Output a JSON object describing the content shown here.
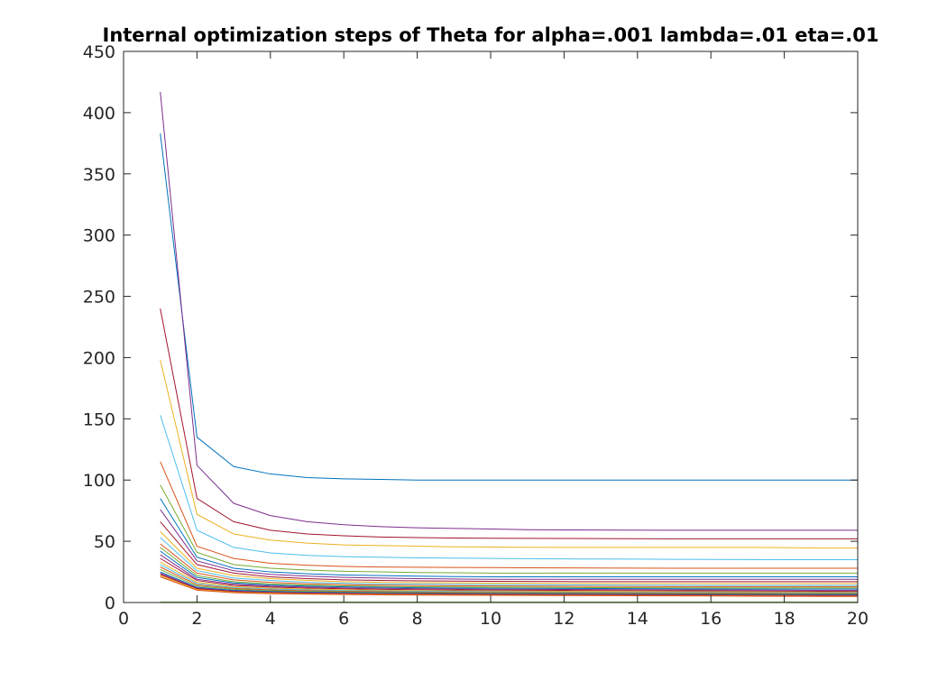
{
  "chart_data": {
    "type": "line",
    "title": "Internal optimization steps of Theta for alpha=.001 lambda=.01 eta=.01",
    "xlabel": "",
    "ylabel": "",
    "xlim": [
      0,
      20
    ],
    "ylim": [
      0,
      450
    ],
    "xticks": [
      0,
      2,
      4,
      6,
      8,
      10,
      12,
      14,
      16,
      18,
      20
    ],
    "yticks": [
      0,
      50,
      100,
      150,
      200,
      250,
      300,
      350,
      400,
      450
    ],
    "grid": false,
    "legend": "none",
    "x": [
      1,
      2,
      3,
      4,
      5,
      6,
      7,
      8,
      9,
      10,
      11,
      12,
      13,
      14,
      15,
      16,
      17,
      18,
      19,
      20
    ],
    "series": [
      {
        "color": "#0072BD",
        "values": [
          383,
          135,
          111,
          105,
          102,
          101,
          100.5,
          100,
          100,
          100,
          100,
          100,
          100,
          100,
          100,
          100,
          100,
          100,
          100,
          100
        ]
      },
      {
        "color": "#7E2F8E",
        "values": [
          417,
          112,
          81,
          71,
          66,
          63.5,
          62,
          61,
          60.5,
          60,
          59.5,
          59.3,
          59.2,
          59.1,
          59,
          59,
          59,
          59,
          59,
          59
        ]
      },
      {
        "color": "#A2142F",
        "values": [
          240,
          85,
          66,
          59,
          56,
          54.5,
          53.5,
          53,
          52.7,
          52.5,
          52.4,
          52.3,
          52.2,
          52.1,
          52,
          52,
          52,
          52,
          52,
          52
        ]
      },
      {
        "color": "#EDB120",
        "values": [
          198,
          72,
          56,
          51,
          48.5,
          47,
          46.5,
          46,
          45.5,
          45.3,
          45.1,
          45,
          45,
          45,
          45,
          45,
          45,
          44.8,
          44.5,
          44.5
        ]
      },
      {
        "color": "#4DBEEE",
        "values": [
          153,
          59,
          45,
          40.5,
          38.5,
          37.5,
          37,
          36.5,
          36.3,
          36,
          35.8,
          35.6,
          35.5,
          35.4,
          35.3,
          35.2,
          35.1,
          35,
          35,
          35
        ]
      },
      {
        "color": "#D95319",
        "values": [
          115,
          46,
          36,
          32,
          30.5,
          29.5,
          29,
          28.8,
          28.6,
          28.5,
          28.4,
          28.3,
          28.2,
          28.1,
          28,
          28,
          28,
          28,
          28,
          28
        ]
      },
      {
        "color": "#77AC30",
        "values": [
          96,
          41,
          31,
          28,
          26.5,
          25.5,
          25,
          24.5,
          24.3,
          24,
          24,
          24,
          24,
          24,
          24,
          24,
          24,
          24,
          24,
          24
        ]
      },
      {
        "color": "#0072BD",
        "values": [
          85,
          37,
          28,
          25,
          23.5,
          22.5,
          22,
          21.5,
          21.2,
          21,
          21,
          21,
          21,
          21,
          21,
          21,
          21,
          21,
          21,
          21
        ]
      },
      {
        "color": "#7E2F8E",
        "values": [
          76,
          34,
          26,
          23,
          21.5,
          20.5,
          20,
          19.5,
          19.2,
          19,
          19,
          19,
          19,
          19,
          19,
          19,
          19,
          19,
          19,
          19
        ]
      },
      {
        "color": "#A2142F",
        "values": [
          66,
          31,
          24,
          21,
          19.5,
          18.5,
          18,
          17.7,
          17.5,
          17.3,
          17.2,
          17.1,
          17,
          17,
          17,
          17,
          17,
          17,
          17,
          17
        ]
      },
      {
        "color": "#EDB120",
        "values": [
          58,
          28,
          22,
          19.5,
          18,
          17,
          16.5,
          16.2,
          16,
          15.8,
          15.7,
          15.6,
          15.5,
          15.5,
          15.5,
          15.5,
          15.5,
          15.5,
          15.5,
          15.5
        ]
      },
      {
        "color": "#4DBEEE",
        "values": [
          53,
          26,
          20,
          18,
          16.5,
          15.7,
          15.2,
          15,
          14.8,
          14.6,
          14.5,
          14.4,
          14.3,
          14.2,
          14.1,
          14,
          14,
          14,
          14,
          14
        ]
      },
      {
        "color": "#D95319",
        "values": [
          48,
          24,
          18.5,
          16.5,
          15.3,
          14.6,
          14.2,
          13.9,
          13.7,
          13.5,
          13.4,
          13.3,
          13.2,
          13.1,
          13,
          13,
          13,
          13,
          13,
          13
        ]
      },
      {
        "color": "#77AC30",
        "values": [
          45,
          22,
          17,
          15.2,
          14.2,
          13.6,
          13.2,
          12.9,
          12.7,
          12.5,
          12.4,
          12.3,
          12.2,
          12.1,
          12,
          12,
          12,
          12,
          12,
          12
        ]
      },
      {
        "color": "#0072BD",
        "values": [
          42,
          20.5,
          16,
          14.3,
          13.4,
          12.8,
          12.4,
          12.1,
          11.9,
          11.7,
          11.6,
          11.5,
          11.4,
          11.3,
          11.2,
          11.1,
          11,
          11,
          11,
          11
        ]
      },
      {
        "color": "#7E2F8E",
        "values": [
          39,
          19,
          15,
          13.4,
          12.6,
          12,
          11.6,
          11.3,
          11.1,
          10.9,
          10.8,
          10.7,
          10.6,
          10.5,
          10.4,
          10.3,
          10.2,
          10.1,
          10,
          10
        ]
      },
      {
        "color": "#A2142F",
        "values": [
          36,
          18,
          14,
          12.6,
          11.8,
          11.2,
          10.8,
          10.5,
          10.3,
          10.1,
          10,
          9.9,
          9.8,
          9.7,
          9.6,
          9.5,
          9.4,
          9.3,
          9.2,
          9.1
        ]
      },
      {
        "color": "#EDB120",
        "values": [
          33,
          16.5,
          13,
          11.7,
          11,
          10.5,
          10.1,
          9.8,
          9.6,
          9.4,
          9.3,
          9.2,
          9.1,
          9,
          8.9,
          8.8,
          8.7,
          8.6,
          8.5,
          8.5
        ]
      },
      {
        "color": "#4DBEEE",
        "values": [
          31,
          15.5,
          12.2,
          11,
          10.3,
          9.8,
          9.5,
          9.2,
          9,
          8.8,
          8.7,
          8.6,
          8.5,
          8.4,
          8.3,
          8.2,
          8.1,
          8,
          8,
          8
        ]
      },
      {
        "color": "#D95319",
        "values": [
          29,
          14.5,
          11.5,
          10.3,
          9.7,
          9.2,
          8.9,
          8.6,
          8.4,
          8.3,
          8.2,
          8.1,
          8,
          7.9,
          7.8,
          7.7,
          7.6,
          7.5,
          7.5,
          7.5
        ]
      },
      {
        "color": "#77AC30",
        "values": [
          27,
          13.5,
          10.8,
          9.7,
          9.1,
          8.7,
          8.4,
          8.1,
          7.9,
          7.8,
          7.7,
          7.6,
          7.5,
          7.4,
          7.3,
          7.2,
          7.1,
          7,
          7,
          7
        ]
      },
      {
        "color": "#0072BD",
        "values": [
          25,
          12.5,
          10,
          9,
          8.5,
          8.1,
          7.8,
          7.6,
          7.4,
          7.3,
          7.2,
          7.1,
          7,
          6.9,
          6.8,
          6.7,
          6.6,
          6.5,
          6.5,
          6.5
        ]
      },
      {
        "color": "#7E2F8E",
        "values": [
          24,
          11.8,
          9.4,
          8.5,
          8,
          7.6,
          7.4,
          7.2,
          7,
          6.9,
          6.8,
          6.7,
          6.6,
          6.5,
          6.4,
          6.3,
          6.2,
          6.1,
          6,
          6
        ]
      },
      {
        "color": "#A2142F",
        "values": [
          23,
          11.2,
          8.9,
          8,
          7.5,
          7.2,
          7,
          6.8,
          6.6,
          6.5,
          6.4,
          6.3,
          6.2,
          6.1,
          6,
          5.9,
          5.8,
          5.7,
          5.6,
          5.5
        ]
      },
      {
        "color": "#EDB120",
        "values": [
          22,
          10.6,
          8.4,
          7.6,
          7.1,
          6.8,
          6.6,
          6.4,
          6.2,
          6.1,
          6,
          5.9,
          5.8,
          5.7,
          5.6,
          5.5,
          5.4,
          5.3,
          5.2,
          5.2
        ]
      },
      {
        "color": "#D95319",
        "values": [
          21,
          10,
          8,
          7.2,
          6.8,
          6.5,
          6.3,
          6.1,
          6,
          5.9,
          5.8,
          5.7,
          5.6,
          5.5,
          5.4,
          5.3,
          5.2,
          5.1,
          5,
          5
        ]
      },
      {
        "color": "#77AC30",
        "values": [
          0.5,
          0.5,
          0.5,
          0.5,
          0.5,
          0.5,
          0.5,
          0.5,
          0.5,
          0.5,
          0.5,
          0.5,
          0.5,
          0.5,
          0.5,
          0.5,
          0.5,
          0.5,
          0.5,
          0.5
        ]
      }
    ]
  }
}
